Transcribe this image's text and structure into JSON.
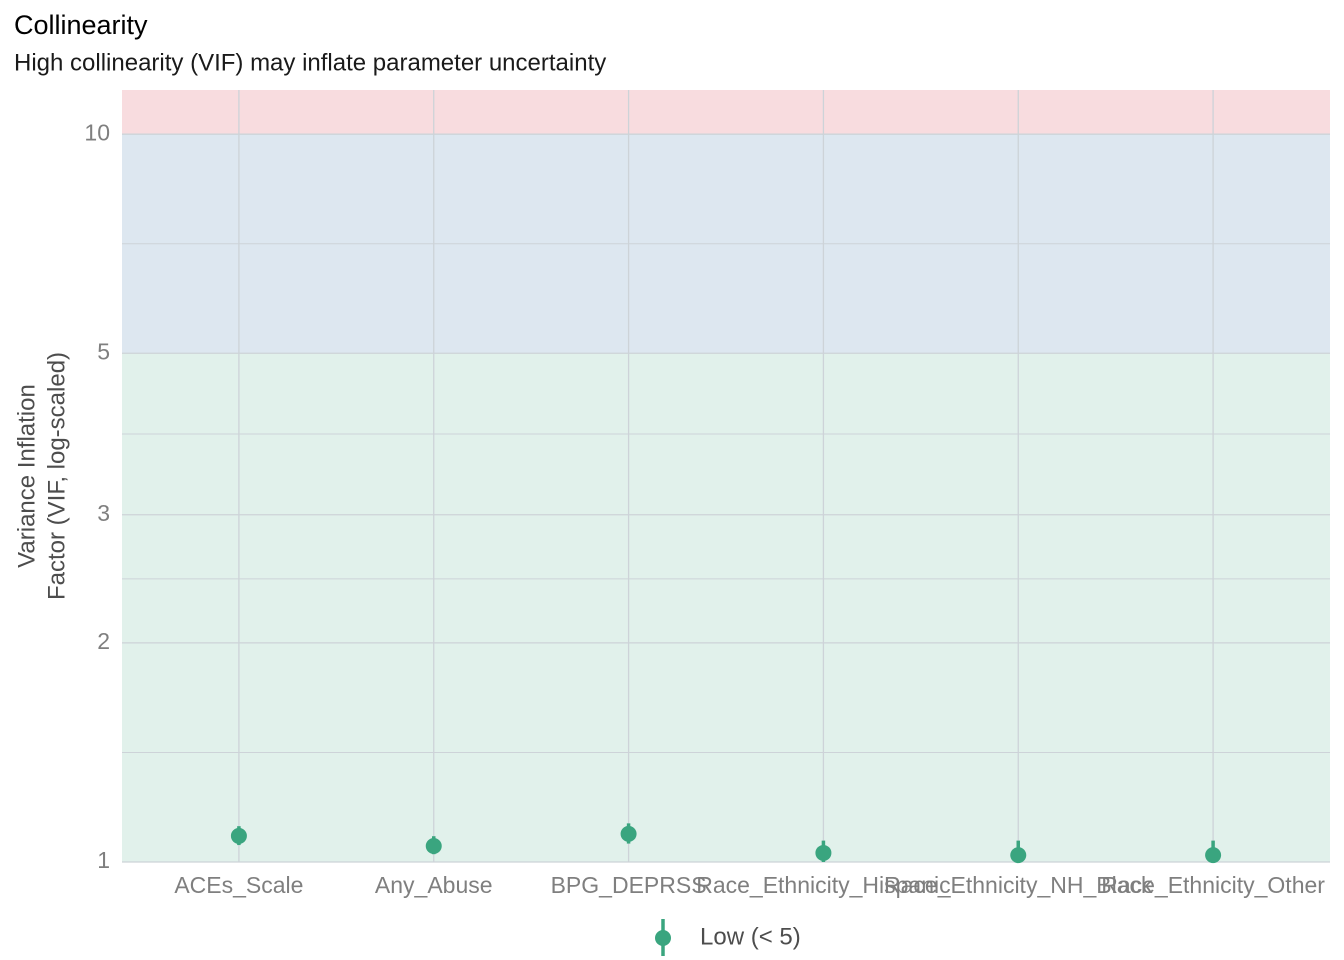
{
  "chart_data": {
    "type": "dot-errorbar",
    "title": "Collinearity",
    "subtitle": "High collinearity (VIF) may inflate parameter uncertainty",
    "ylabel": [
      "Variance Inflation",
      "Factor (VIF, log-scaled)"
    ],
    "categories": [
      "ACEs_Scale",
      "Any_Abuse",
      "BPG_DEPRSS",
      "Race_Ethnicity_Hispanic",
      "Race_Ethnicity_NH_Black",
      "Race_Ethnicity_Other"
    ],
    "series": [
      {
        "name": "Low (< 5)",
        "color": "#3aa57f",
        "values": [
          1.086,
          1.052,
          1.093,
          1.029,
          1.022,
          1.022
        ],
        "ci_low": [
          1.055,
          1.025,
          1.06,
          1.0,
          1.0,
          1.0
        ],
        "ci_high": [
          1.12,
          1.085,
          1.13,
          1.07,
          1.07,
          1.07
        ]
      }
    ],
    "ylim": [
      1,
      11.5
    ],
    "yscale": "log",
    "yticks": [
      1,
      2,
      3,
      5,
      10
    ],
    "grid": true,
    "bands": [
      {
        "from": 1,
        "to": 5,
        "color": "#e1f1eb"
      },
      {
        "from": 5,
        "to": 10,
        "color": "#dde7f0"
      },
      {
        "from": 10,
        "to": 11.5,
        "color": "#f8dcdf"
      }
    ],
    "legend": "bottom"
  }
}
